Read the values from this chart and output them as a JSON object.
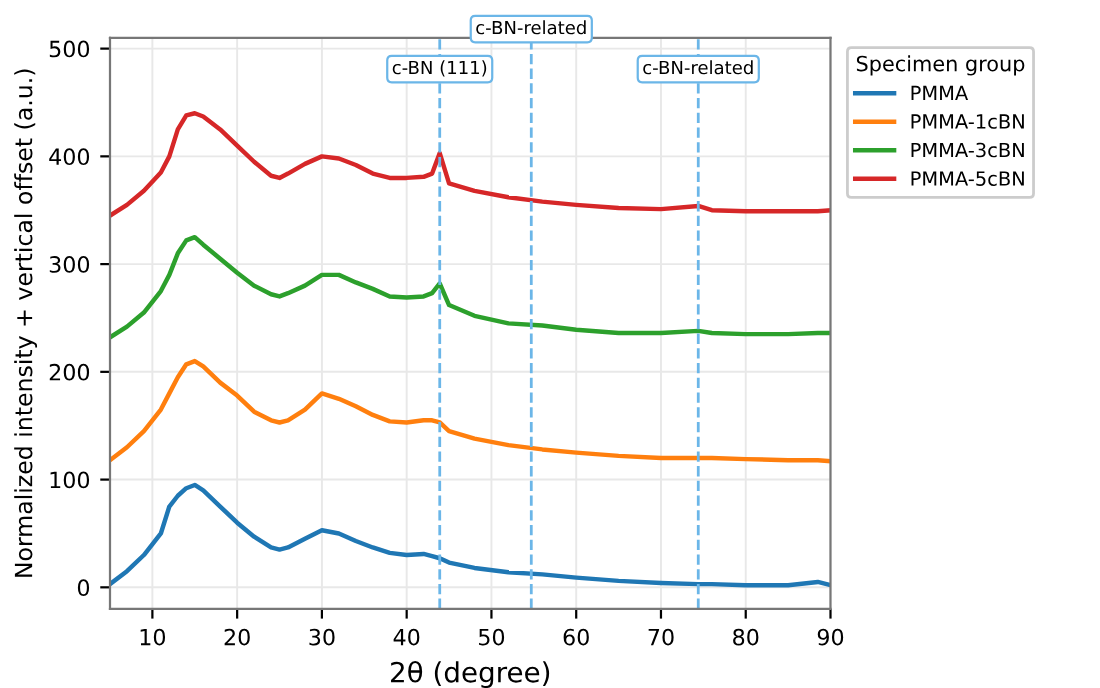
{
  "chart_data": {
    "type": "line",
    "xlabel": "2θ (degree)",
    "ylabel": "Normalized intensity + vertical offset (a.u.)",
    "legend_title": "Specimen group",
    "legend": "outside top right",
    "grid": true,
    "line_style": "solid",
    "marker": "none",
    "x": [
      5,
      7,
      9,
      11,
      12,
      13,
      14,
      15,
      16,
      18,
      20,
      22,
      24,
      25,
      26,
      28,
      30,
      32,
      34,
      36,
      38,
      40,
      42,
      43,
      43.9,
      45,
      48,
      52,
      56,
      60,
      65,
      70,
      74.4,
      76,
      80,
      85,
      88.5,
      90
    ],
    "series": [
      {
        "name": "PMMA",
        "color": "#1f77b4",
        "values": [
          3,
          15,
          30,
          50,
          75,
          85,
          92,
          95,
          90,
          75,
          60,
          47,
          37,
          35,
          37,
          45,
          53,
          50,
          43,
          37,
          32,
          30,
          31,
          29,
          27,
          23,
          18,
          14,
          12,
          9,
          6,
          4,
          3,
          3,
          2,
          2,
          5,
          2
        ]
      },
      {
        "name": "PMMA-1cBN",
        "color": "#ff7f0e",
        "values": [
          118,
          130,
          145,
          165,
          180,
          195,
          207,
          210,
          205,
          190,
          178,
          163,
          155,
          153,
          155,
          165,
          180,
          175,
          168,
          160,
          154,
          153,
          155,
          155,
          153,
          145,
          138,
          132,
          128,
          125,
          122,
          120,
          120,
          120,
          119,
          118,
          118,
          117
        ]
      },
      {
        "name": "PMMA-3cBN",
        "color": "#2ca02c",
        "values": [
          232,
          242,
          255,
          275,
          290,
          310,
          322,
          325,
          318,
          305,
          292,
          280,
          272,
          270,
          273,
          280,
          290,
          290,
          283,
          277,
          270,
          269,
          270,
          273,
          282,
          262,
          252,
          245,
          243,
          239,
          236,
          236,
          238,
          236,
          235,
          235,
          236,
          236
        ]
      },
      {
        "name": "PMMA-5cBN",
        "color": "#d62728",
        "values": [
          345,
          355,
          368,
          385,
          400,
          425,
          438,
          440,
          437,
          425,
          410,
          395,
          382,
          380,
          384,
          393,
          400,
          398,
          392,
          384,
          380,
          380,
          381,
          384,
          403,
          375,
          368,
          362,
          358,
          355,
          352,
          351,
          354,
          350,
          349,
          349,
          349,
          350
        ]
      }
    ],
    "xlim": [
      5,
      90
    ],
    "xticks": [
      10,
      20,
      30,
      40,
      50,
      60,
      70,
      80,
      90
    ],
    "ylim": [
      -20,
      510
    ],
    "yticks": [
      0,
      100,
      200,
      300,
      400,
      500
    ],
    "ref_lines": [
      {
        "axis": "x",
        "value": 43.9,
        "label": "c-BN (111)",
        "color": "#6bb6e8",
        "line_style": "dashed"
      },
      {
        "axis": "x",
        "value": 54.7,
        "label": "c-BN-related",
        "color": "#6bb6e8",
        "line_style": "dashed"
      },
      {
        "axis": "x",
        "value": 74.4,
        "label": "c-BN-related",
        "color": "#6bb6e8",
        "line_style": "dashed"
      }
    ]
  }
}
